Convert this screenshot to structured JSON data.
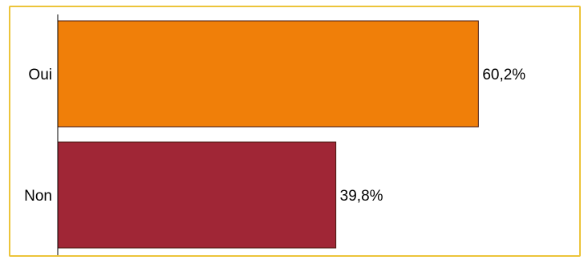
{
  "chart_data": {
    "type": "bar",
    "orientation": "horizontal",
    "categories": [
      "Oui",
      "Non"
    ],
    "values": [
      60.2,
      39.8
    ],
    "value_labels": [
      "60,2%",
      "39,8%"
    ],
    "colors": [
      "#f07f09",
      "#a02636"
    ],
    "border_color": "#ecc43a",
    "xlim": [
      0,
      100
    ],
    "grid": false,
    "legend": "none"
  }
}
